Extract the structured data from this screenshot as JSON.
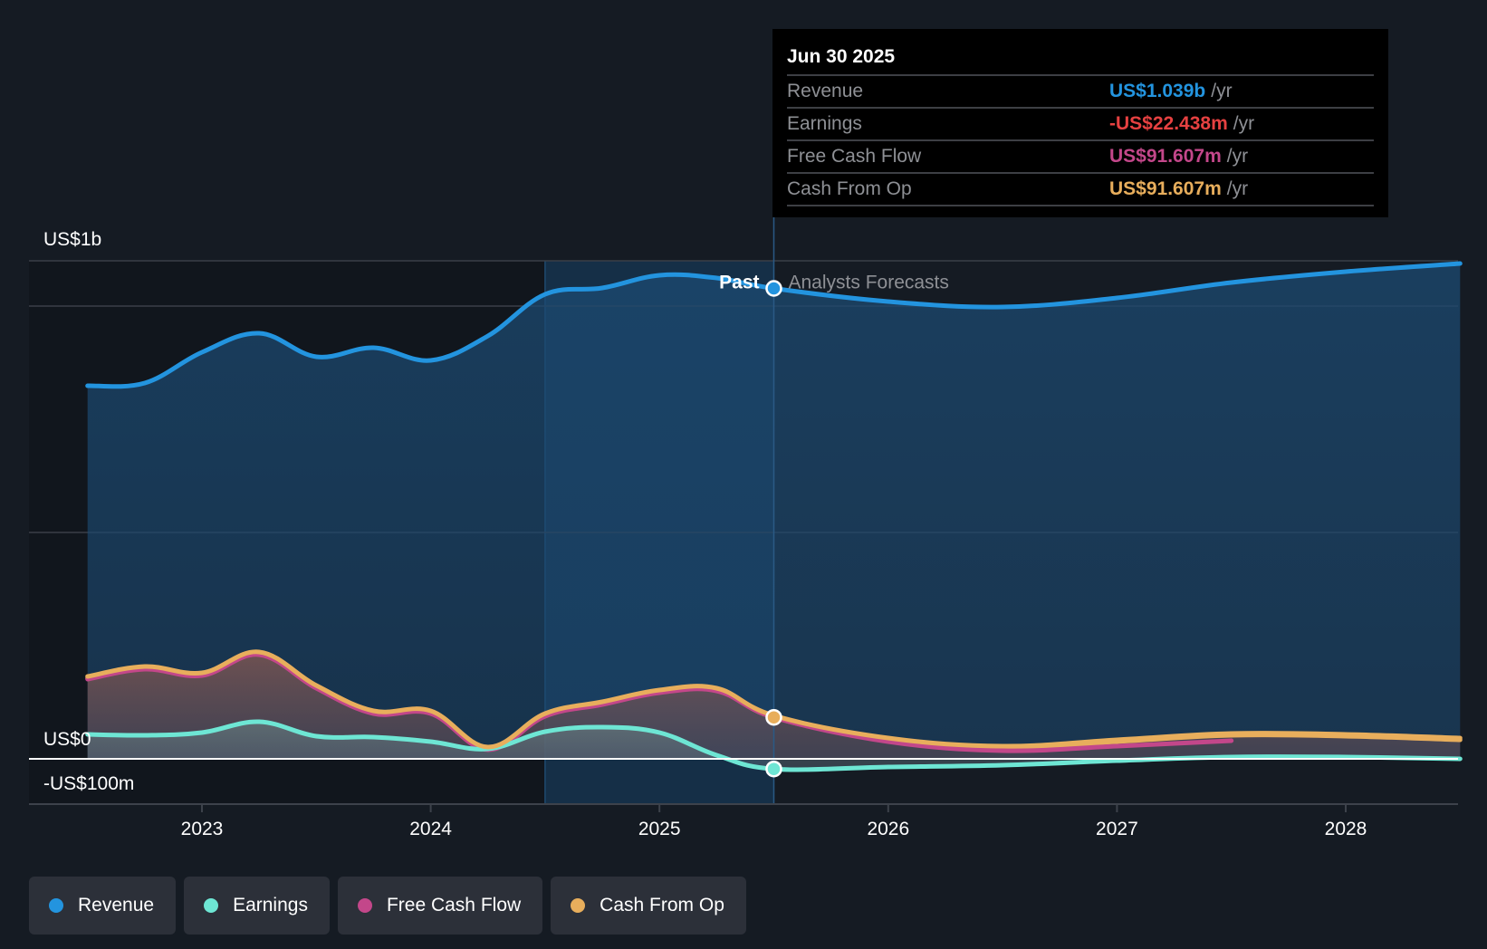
{
  "tooltip": {
    "date": "Jun 30 2025",
    "rows": [
      {
        "label": "Revenue",
        "value": "US$1.039b",
        "unit": "/yr",
        "color": "#2394df"
      },
      {
        "label": "Earnings",
        "value": "-US$22.438m",
        "unit": "/yr",
        "color": "#e64141"
      },
      {
        "label": "Free Cash Flow",
        "value": "US$91.607m",
        "unit": "/yr",
        "color": "#c3478a"
      },
      {
        "label": "Cash From Op",
        "value": "US$91.607m",
        "unit": "/yr",
        "color": "#e8ae5c"
      }
    ]
  },
  "markers": {
    "past": "Past",
    "forecast": "Analysts Forecasts"
  },
  "legend": [
    {
      "label": "Revenue",
      "color": "#2394df"
    },
    {
      "label": "Earnings",
      "color": "#6ee6d4"
    },
    {
      "label": "Free Cash Flow",
      "color": "#c3478a"
    },
    {
      "label": "Cash From Op",
      "color": "#e8ae5c"
    }
  ],
  "chart_data": {
    "type": "area",
    "title": "",
    "xlabel": "",
    "ylabel": "",
    "units": "US$ millions",
    "xlim": [
      2022.25,
      2028.75
    ],
    "ylim": [
      -100,
      1100
    ],
    "y_tick_labels": [
      {
        "value": 1000,
        "label": "US$1b"
      },
      {
        "value": 0,
        "label": "US$0"
      },
      {
        "value": -100,
        "label": "-US$100m"
      }
    ],
    "gridlines": [
      1100,
      1000,
      500
    ],
    "x_ticks": [
      {
        "value": 2023,
        "label": "2023"
      },
      {
        "value": 2024,
        "label": "2024"
      },
      {
        "value": 2025,
        "label": "2025"
      },
      {
        "value": 2026,
        "label": "2026"
      },
      {
        "value": 2027,
        "label": "2027"
      },
      {
        "value": 2028,
        "label": "2028"
      }
    ],
    "past_end": 2025.5,
    "highlight_start": 2024.5,
    "series": [
      {
        "name": "Revenue",
        "color": "#2394df",
        "x": [
          2022.5,
          2022.75,
          2023.0,
          2023.25,
          2023.5,
          2023.75,
          2024.0,
          2024.25,
          2024.5,
          2024.75,
          2025.0,
          2025.25,
          2025.5,
          2026.0,
          2026.5,
          2027.0,
          2027.5,
          2028.0,
          2028.5
        ],
        "values": [
          824,
          830,
          898,
          940,
          888,
          908,
          880,
          934,
          1026,
          1040,
          1068,
          1062,
          1039,
          1010,
          998,
          1018,
          1052,
          1076,
          1094
        ]
      },
      {
        "name": "Earnings",
        "color": "#6ee6d4",
        "x": [
          2022.5,
          2022.75,
          2023.0,
          2023.25,
          2023.5,
          2023.75,
          2024.0,
          2024.25,
          2024.5,
          2024.75,
          2025.0,
          2025.25,
          2025.5,
          2026.0,
          2026.5,
          2027.0,
          2027.5,
          2028.0,
          2028.5
        ],
        "values": [
          54,
          52,
          58,
          82,
          50,
          48,
          38,
          22,
          60,
          70,
          58,
          8,
          -22.4,
          -18,
          -14,
          -4,
          4,
          4,
          0
        ]
      },
      {
        "name": "Free Cash Flow",
        "color": "#c3478a",
        "x": [
          2022.5,
          2022.75,
          2023.0,
          2023.25,
          2023.5,
          2023.75,
          2024.0,
          2024.25,
          2024.5,
          2024.75,
          2025.0,
          2025.25,
          2025.5,
          2026.0,
          2026.5,
          2027.0,
          2027.5
        ],
        "values": [
          176,
          198,
          184,
          230,
          156,
          100,
          100,
          20,
          94,
          120,
          146,
          150,
          91.6,
          38,
          18,
          28,
          40
        ]
      },
      {
        "name": "Cash From Op",
        "color": "#e8ae5c",
        "x": [
          2022.5,
          2022.75,
          2023.0,
          2023.25,
          2023.5,
          2023.75,
          2024.0,
          2024.25,
          2024.5,
          2024.75,
          2025.0,
          2025.25,
          2025.5,
          2026.0,
          2026.5,
          2027.0,
          2027.5,
          2028.0,
          2028.5
        ],
        "values": [
          178,
          200,
          186,
          232,
          158,
          102,
          102,
          22,
          96,
          122,
          148,
          152,
          91.6,
          42,
          24,
          38,
          52,
          50,
          42
        ]
      }
    ],
    "legend_position": "bottom-left"
  }
}
